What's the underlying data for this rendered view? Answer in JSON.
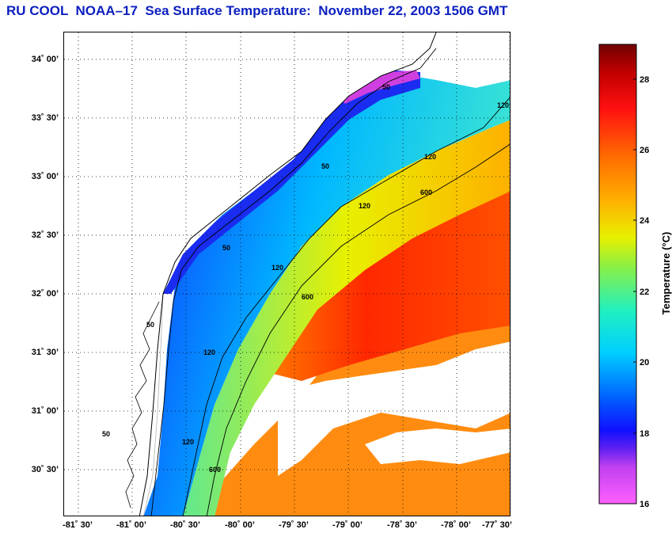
{
  "title": "RU COOL  NOAA–17  Sea Surface Temperature:  November 22, 2003 1506 GMT",
  "map": {
    "lat_ticks": [
      "34˚ 00’",
      "33˚ 30’",
      "33˚ 00’",
      "32˚ 30’",
      "32˚ 00’",
      "31˚ 30’",
      "31˚ 00’",
      "30˚ 30’"
    ],
    "lon_ticks": [
      "-81˚ 30’",
      "-81˚ 00’",
      "-80˚ 30’",
      "-80˚ 00’",
      "-79˚ 30’",
      "-79˚ 00’",
      "-78˚ 30’",
      "-78˚ 00’",
      "-77˚ 30’"
    ],
    "contour_labels": [
      "50",
      "120",
      "600",
      "50",
      "120",
      "600",
      "50",
      "120",
      "120",
      "50",
      "120",
      "600",
      "120",
      "50"
    ]
  },
  "colorbar": {
    "label": "Temperature (°C)",
    "ticks": [
      "28",
      "26",
      "24",
      "22",
      "20",
      "18",
      "16"
    ],
    "min": 16,
    "max": 29
  },
  "colors": {
    "title": "#0b1fbf",
    "cold": "#ff33cc",
    "blue": "#1030ff",
    "cyan": "#00e0f0",
    "yellow": "#f0f000",
    "orange": "#ff8000",
    "red": "#ff1000",
    "darkred": "#800000"
  }
}
